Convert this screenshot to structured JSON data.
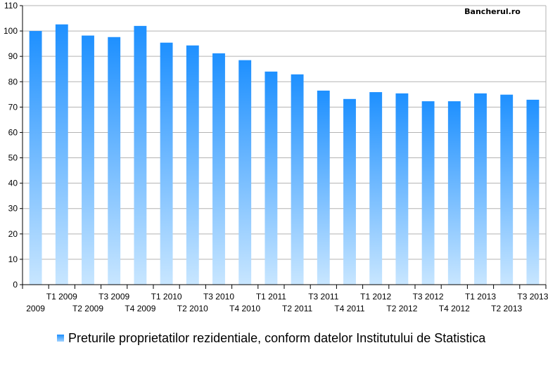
{
  "chart_data": {
    "type": "bar",
    "categories": [
      "2009",
      "T1 2009",
      "T2 2009",
      "T3 2009",
      "T4 2009",
      "T1 2010",
      "T2 2010",
      "T3 2010",
      "T4 2010",
      "T1 2011",
      "T2 2011",
      "T3 2011",
      "T4 2011",
      "T1 2012",
      "T2 2012",
      "T3 2012",
      "T4 2012",
      "T1 2013",
      "T2 2013",
      "T3 2013"
    ],
    "values": [
      100,
      102.6,
      98.2,
      97.6,
      102.0,
      95.4,
      94.3,
      91.2,
      88.5,
      84.0,
      82.9,
      76.5,
      73.2,
      75.9,
      75.4,
      72.3,
      72.3,
      75.4,
      74.9,
      72.9
    ],
    "ylim": [
      0,
      110
    ],
    "yticks": [
      "0",
      "10",
      "20",
      "30",
      "40",
      "50",
      "60",
      "70",
      "80",
      "90",
      "100",
      "110"
    ],
    "grid": true,
    "legend_position": "bottom",
    "series": [
      {
        "name": "Preturile proprietatilor rezidentiale, conform datelor Institutului de Statistica"
      }
    ],
    "colors": {
      "bar_top": "#1e90ff",
      "bar_bottom": "#c8e6ff",
      "grid": "#b3b3b3"
    }
  },
  "watermark": "Bancherul.ro"
}
